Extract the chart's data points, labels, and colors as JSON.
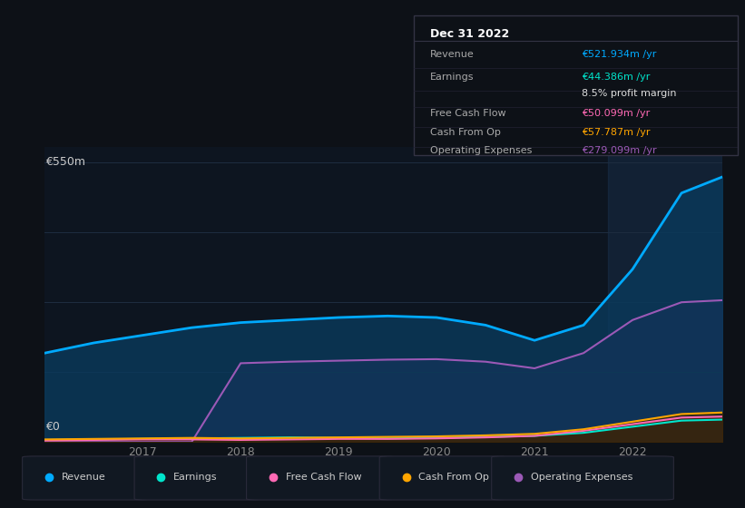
{
  "background_color": "#0d1117",
  "plot_bg_color": "#0d1520",
  "ylabel_top": "€550m",
  "ylabel_bottom": "€0",
  "years": [
    2016.0,
    2016.5,
    2017.0,
    2017.5,
    2018.0,
    2018.5,
    2019.0,
    2019.5,
    2020.0,
    2020.5,
    2021.0,
    2021.5,
    2022.0,
    2022.5,
    2022.92
  ],
  "revenue": [
    175,
    195,
    210,
    225,
    235,
    240,
    245,
    248,
    245,
    230,
    200,
    230,
    340,
    490,
    522
  ],
  "earnings": [
    4,
    5,
    6,
    7,
    8,
    9,
    8,
    7,
    8,
    10,
    12,
    18,
    30,
    42,
    44
  ],
  "fcf": [
    3,
    4,
    5,
    5,
    4,
    5,
    6,
    6,
    7,
    9,
    12,
    22,
    35,
    48,
    50
  ],
  "cashfromop": [
    5,
    6,
    7,
    8,
    7,
    8,
    9,
    10,
    11,
    13,
    16,
    25,
    40,
    55,
    58
  ],
  "opex": [
    0,
    0,
    0,
    0,
    155,
    158,
    160,
    162,
    163,
    158,
    145,
    175,
    240,
    275,
    279
  ],
  "revenue_color": "#00aaff",
  "earnings_color": "#00e5cc",
  "fcf_color": "#ff69b4",
  "cashfromop_color": "#ffa500",
  "opex_color": "#9b59b6",
  "revenue_fill": "#0a3a5c",
  "earnings_fill": "#003330",
  "fcf_fill": "#3d1a2e",
  "cashfromop_fill": "#3d2800",
  "opex_fill": "#2d1a4a",
  "ylim": [
    0,
    580
  ],
  "xticks": [
    2017,
    2018,
    2019,
    2020,
    2021,
    2022
  ],
  "grid_color": "#1e2d40",
  "legend_items": [
    "Revenue",
    "Earnings",
    "Free Cash Flow",
    "Cash From Op",
    "Operating Expenses"
  ],
  "legend_colors": [
    "#00aaff",
    "#00e5cc",
    "#ff69b4",
    "#ffa500",
    "#9b59b6"
  ],
  "info_box": {
    "title": "Dec 31 2022",
    "rows": [
      {
        "label": "Revenue",
        "value": "€521.934m /yr",
        "value_color": "#00aaff",
        "label_color": "#aaaaaa"
      },
      {
        "label": "Earnings",
        "value": "€44.386m /yr",
        "value_color": "#00e5cc",
        "label_color": "#aaaaaa"
      },
      {
        "label": "",
        "value": "8.5% profit margin",
        "value_color": "#dddddd",
        "label_color": "#aaaaaa"
      },
      {
        "label": "Free Cash Flow",
        "value": "€50.099m /yr",
        "value_color": "#ff69b4",
        "label_color": "#aaaaaa"
      },
      {
        "label": "Cash From Op",
        "value": "€57.787m /yr",
        "value_color": "#ffa500",
        "label_color": "#aaaaaa"
      },
      {
        "label": "Operating Expenses",
        "value": "€279.099m /yr",
        "value_color": "#9b59b6",
        "label_color": "#aaaaaa"
      }
    ]
  },
  "vertical_line_x": 2022.0,
  "vertical_line_color": "#1e3a5a"
}
